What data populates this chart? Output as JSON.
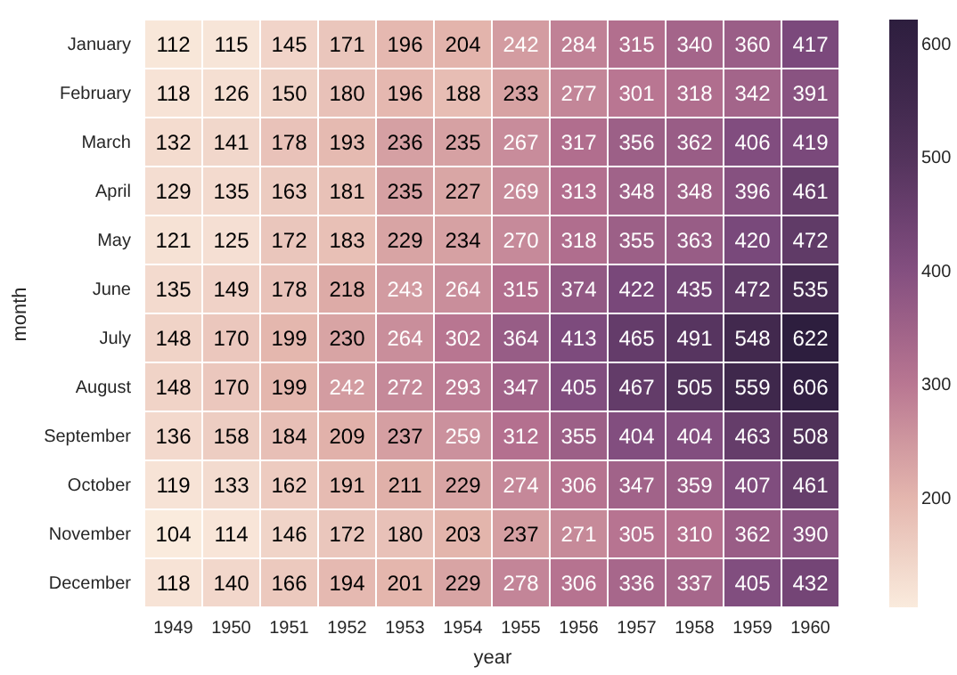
{
  "chart_data": {
    "type": "heatmap",
    "xlabel": "year",
    "ylabel": "month",
    "categories": [
      "1949",
      "1950",
      "1951",
      "1952",
      "1953",
      "1954",
      "1955",
      "1956",
      "1957",
      "1958",
      "1959",
      "1960"
    ],
    "y_categories": [
      "January",
      "February",
      "March",
      "April",
      "May",
      "June",
      "July",
      "August",
      "September",
      "October",
      "November",
      "December"
    ],
    "cells": [
      [
        112,
        115,
        145,
        171,
        196,
        204,
        242,
        284,
        315,
        340,
        360,
        417
      ],
      [
        118,
        126,
        150,
        180,
        196,
        188,
        233,
        277,
        301,
        318,
        342,
        391
      ],
      [
        132,
        141,
        178,
        193,
        236,
        235,
        267,
        317,
        356,
        362,
        406,
        419
      ],
      [
        129,
        135,
        163,
        181,
        235,
        227,
        269,
        313,
        348,
        348,
        396,
        461
      ],
      [
        121,
        125,
        172,
        183,
        229,
        234,
        270,
        318,
        355,
        363,
        420,
        472
      ],
      [
        135,
        149,
        178,
        218,
        243,
        264,
        315,
        374,
        422,
        435,
        472,
        535
      ],
      [
        148,
        170,
        199,
        230,
        264,
        302,
        364,
        413,
        465,
        491,
        548,
        622
      ],
      [
        148,
        170,
        199,
        242,
        272,
        293,
        347,
        405,
        467,
        505,
        559,
        606
      ],
      [
        136,
        158,
        184,
        209,
        237,
        259,
        312,
        355,
        404,
        404,
        463,
        508
      ],
      [
        119,
        133,
        162,
        191,
        211,
        229,
        274,
        306,
        347,
        359,
        407,
        461
      ],
      [
        104,
        114,
        146,
        172,
        180,
        203,
        237,
        271,
        305,
        310,
        362,
        390
      ],
      [
        118,
        140,
        166,
        194,
        201,
        229,
        278,
        306,
        336,
        337,
        405,
        432
      ]
    ],
    "data_labels": true,
    "clim": [
      104,
      622
    ],
    "cticks": [
      200,
      300,
      400,
      500,
      600
    ],
    "colors": [
      "#faebdd",
      "#e2b2aa",
      "#b4708f",
      "#7c4a7d",
      "#4a2e55",
      "#2d1e3e"
    ]
  }
}
